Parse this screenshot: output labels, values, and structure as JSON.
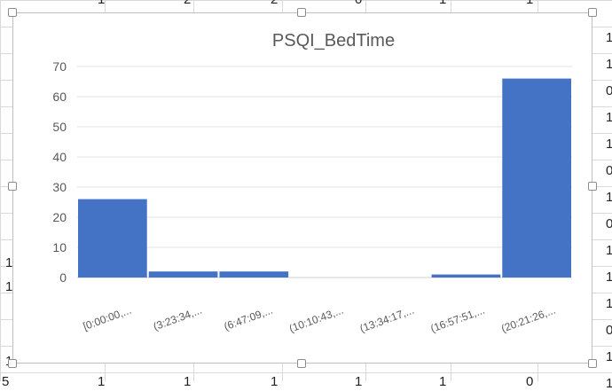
{
  "sheet": {
    "visible_cell_text": [
      {
        "text": "1",
        "col": "c1",
        "row": "top"
      },
      {
        "text": "2",
        "col": "c2",
        "row": "top"
      },
      {
        "text": "2",
        "col": "c3",
        "row": "top"
      },
      {
        "text": "0",
        "col": "c4",
        "row": "top"
      },
      {
        "text": "1",
        "col": "c5",
        "row": "top"
      },
      {
        "text": "1",
        "col": "c6",
        "row": "top"
      },
      {
        "text": "5",
        "col": "c0",
        "row": "bottom"
      },
      {
        "text": "1",
        "col": "c1",
        "row": "bottom"
      },
      {
        "text": "1",
        "col": "c2",
        "row": "bottom"
      },
      {
        "text": "1",
        "col": "c3",
        "row": "bottom"
      },
      {
        "text": "1",
        "col": "c4",
        "row": "bottom"
      },
      {
        "text": "1",
        "col": "c5",
        "row": "bottom"
      },
      {
        "text": "0",
        "col": "c6",
        "row": "bottom"
      },
      {
        "text": "1",
        "col": "right",
        "row": "r1"
      },
      {
        "text": "1",
        "col": "right",
        "row": "r2"
      },
      {
        "text": "0",
        "col": "right",
        "row": "r3"
      },
      {
        "text": "1",
        "col": "right",
        "row": "r4"
      },
      {
        "text": "1",
        "col": "right",
        "row": "r5"
      },
      {
        "text": "0",
        "col": "right",
        "row": "r6"
      },
      {
        "text": "1",
        "col": "right",
        "row": "r7"
      },
      {
        "text": "0",
        "col": "right",
        "row": "r8"
      },
      {
        "text": "1",
        "col": "right",
        "row": "r9"
      },
      {
        "text": "1",
        "col": "right",
        "row": "r10"
      },
      {
        "text": "1",
        "col": "right",
        "row": "r11"
      },
      {
        "text": "0",
        "col": "right",
        "row": "r12"
      },
      {
        "text": "1",
        "col": "right",
        "row": "r13"
      },
      {
        "text": "1",
        "col": "right",
        "row": "r14"
      },
      {
        "text": "1",
        "col": "left",
        "row": "l1"
      },
      {
        "text": "1",
        "col": "left",
        "row": "l2"
      },
      {
        "text": "1",
        "col": "left",
        "row": "l3"
      }
    ],
    "gridline_color": "#d9d9d9"
  },
  "chart_data": {
    "type": "bar",
    "title": "PSQI_BedTime",
    "categories": [
      "[0:00:00,...",
      "(3:23:34,...",
      "(6:47:09,...",
      "(10:10:43,...",
      "(13:34:17,...",
      "(16:57:51,...",
      "(20:21:26,..."
    ],
    "values": [
      26,
      2,
      2,
      0,
      0,
      1,
      66
    ],
    "ylim": [
      0,
      70
    ],
    "yticks": [
      "0",
      "10",
      "20",
      "30",
      "40",
      "50",
      "60",
      "70"
    ],
    "grid": true,
    "legend": "none",
    "bar_color": "#4472c4"
  }
}
